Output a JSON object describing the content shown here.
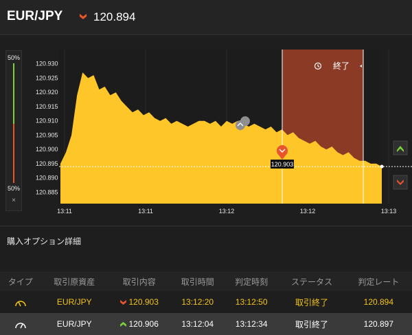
{
  "header": {
    "pair": "EUR/JPY",
    "rate": "120.894",
    "direction_icon": "down-arrow-icon"
  },
  "meter": {
    "top_pct": "50%",
    "bottom_pct": "50%",
    "close_label": "×"
  },
  "chart_data": {
    "type": "area",
    "title": "",
    "y_ticks": [
      "120.930",
      "120.925",
      "120.920",
      "120.915",
      "120.910",
      "120.905",
      "120.900",
      "120.895",
      "120.890",
      "120.885"
    ],
    "x_ticks": [
      "13:11",
      "13:11",
      "13:12",
      "13:12",
      "13:13"
    ],
    "ylim": [
      120.881,
      120.935
    ],
    "series": [
      {
        "values": [
          120.895,
          120.899,
          120.905,
          120.919,
          120.927,
          120.925,
          120.926,
          120.921,
          120.922,
          120.919,
          120.92,
          120.917,
          120.915,
          120.913,
          120.914,
          120.912,
          120.913,
          120.911,
          120.91,
          120.911,
          120.909,
          120.91,
          120.909,
          120.908,
          120.909,
          120.91,
          120.91,
          120.909,
          120.91,
          120.908,
          120.91,
          120.909,
          120.91,
          120.909,
          120.908,
          120.909,
          120.908,
          120.907,
          120.908,
          120.906,
          120.907,
          120.905,
          120.906,
          120.904,
          120.903,
          120.902,
          120.903,
          120.901,
          120.9,
          120.901,
          120.899,
          120.898,
          120.899,
          120.897,
          120.896,
          120.896,
          120.895,
          120.895,
          120.894
        ]
      }
    ],
    "current_rate": 120.894,
    "entry_marker_label": "120.903",
    "expiry_label": "終了",
    "colors": {
      "area": "#ffc62a",
      "expiry_band": "#8b3a26",
      "background": "#1e1e1e"
    }
  },
  "details": {
    "title": "購入オプション詳細",
    "columns": [
      "タイプ",
      "取引原資産",
      "取引内容",
      "取引時間",
      "判定時刻",
      "ステータス",
      "判定レート"
    ],
    "rows": [
      {
        "type_icon": "gauge-icon",
        "asset": "EUR/JPY",
        "direction": "down",
        "content": "120.903",
        "time": "13:12:20",
        "judge_time": "13:12:50",
        "status": "取引終了",
        "judge_rate": "120.894"
      },
      {
        "type_icon": "gauge-icon",
        "asset": "EUR/JPY",
        "direction": "up",
        "content": "120.906",
        "time": "13:12:04",
        "judge_time": "13:12:34",
        "status": "取引終了",
        "judge_rate": "120.897"
      }
    ]
  }
}
